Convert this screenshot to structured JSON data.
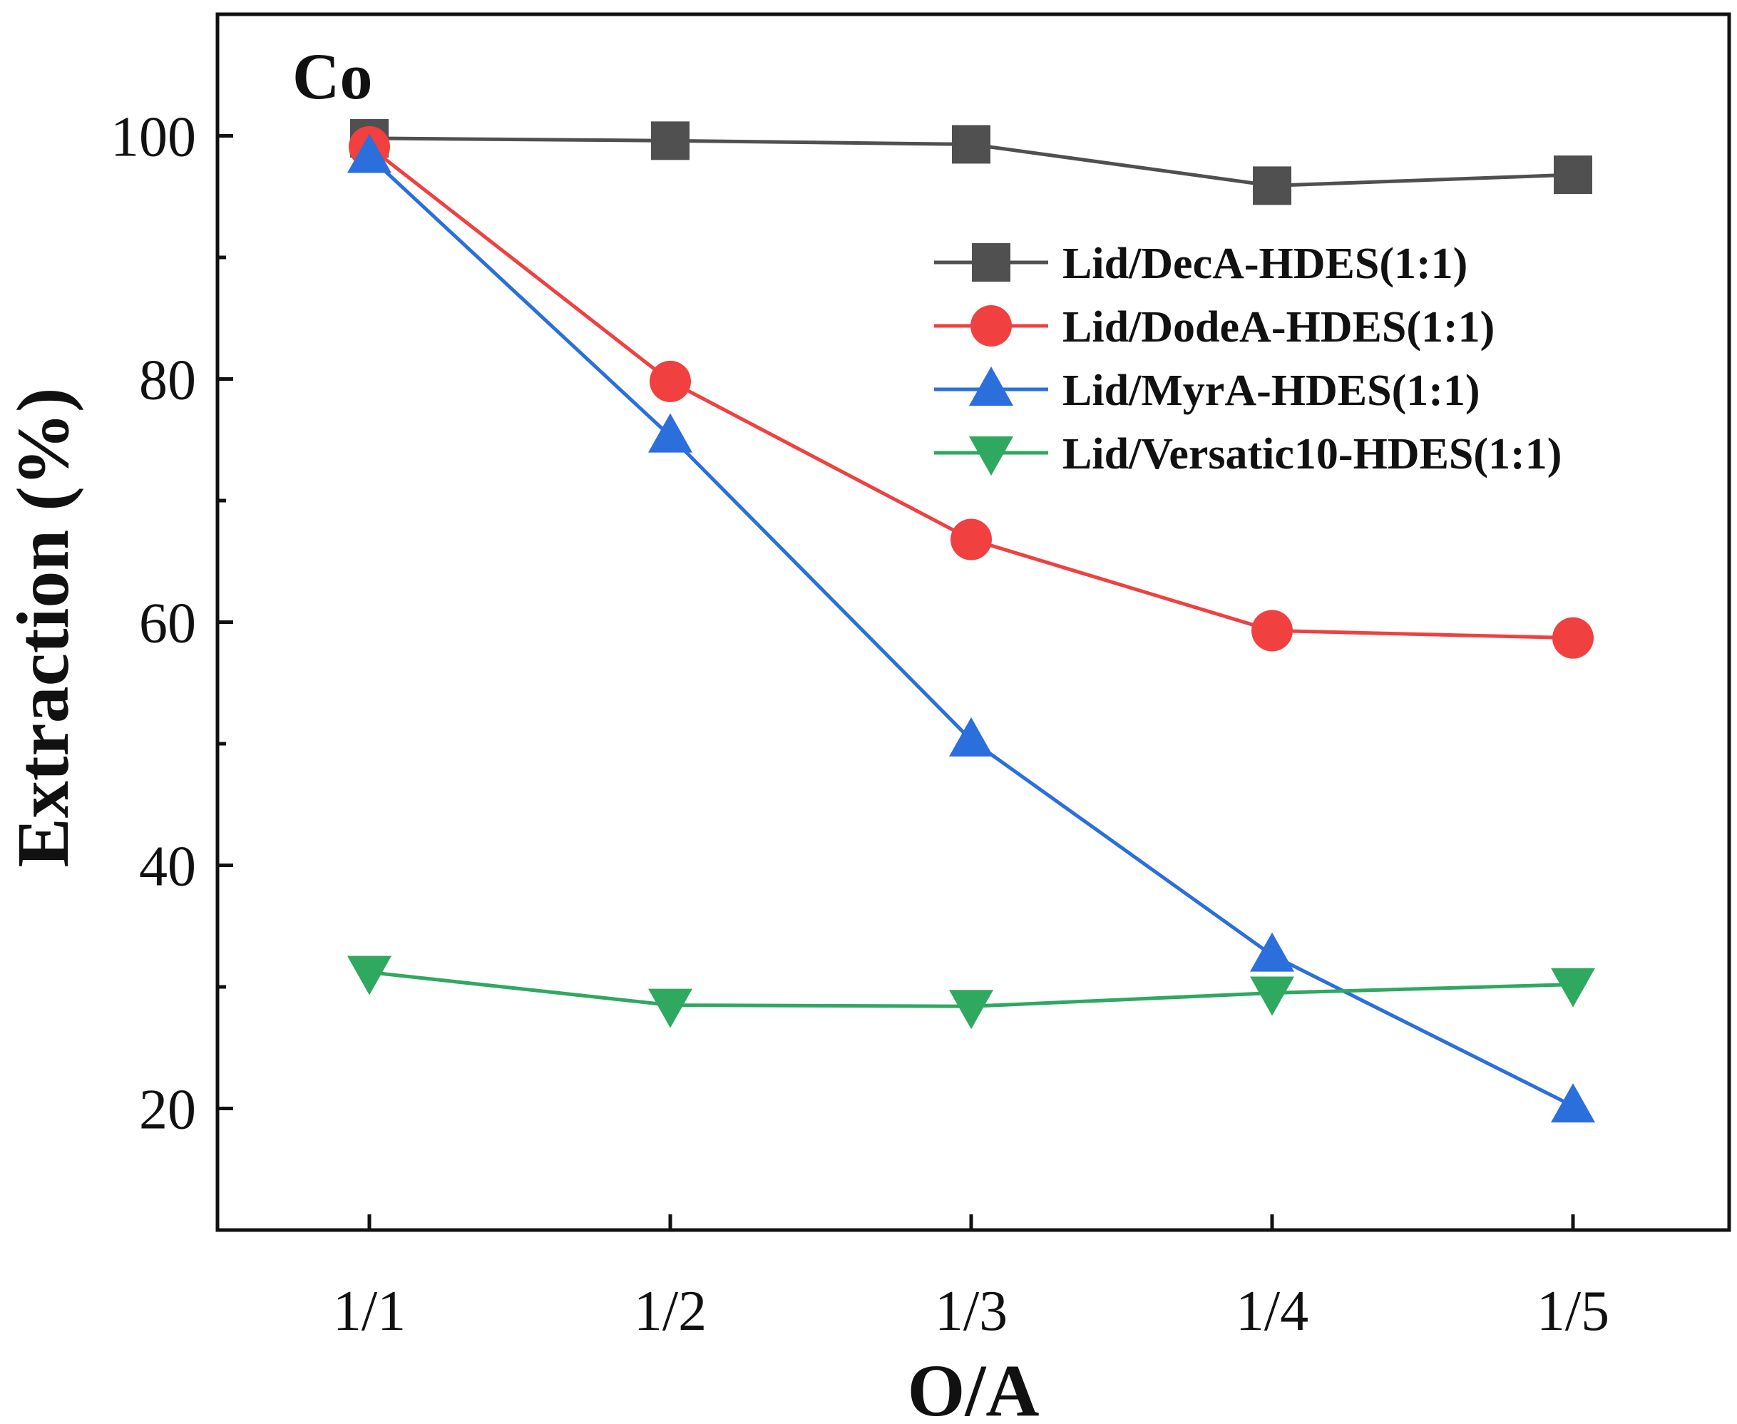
{
  "chart_data": {
    "type": "line",
    "title": "",
    "panel_label": "Co",
    "xlabel": "O/A",
    "ylabel": "Extraction (%)",
    "categories": [
      "1/1",
      "1/2",
      "1/3",
      "1/4",
      "1/5"
    ],
    "ylim": [
      10,
      110
    ],
    "yticks_major": [
      20,
      40,
      60,
      80,
      100
    ],
    "yticks_minor": [
      30,
      50,
      70,
      90
    ],
    "grid": false,
    "legend_position": "top-right",
    "series": [
      {
        "name": "Lid/DecA-HDES(1:1)",
        "color": "#505050",
        "marker": "square",
        "values": [
          99.8,
          99.6,
          99.3,
          95.9,
          96.8
        ]
      },
      {
        "name": "Lid/DodeA-HDES(1:1)",
        "color": "#f04040",
        "marker": "circle",
        "values": [
          99.1,
          79.8,
          66.8,
          59.3,
          58.7
        ]
      },
      {
        "name": "Lid/MyrA-HDES(1:1)",
        "color": "#2a6fdb",
        "marker": "triangle-up",
        "values": [
          98.3,
          75.3,
          50.3,
          32.6,
          20.2
        ]
      },
      {
        "name": "Lid/Versatic10-HDES(1:1)",
        "color": "#2fa860",
        "marker": "triangle-down",
        "values": [
          31.2,
          28.5,
          28.4,
          29.5,
          30.2
        ]
      }
    ]
  }
}
